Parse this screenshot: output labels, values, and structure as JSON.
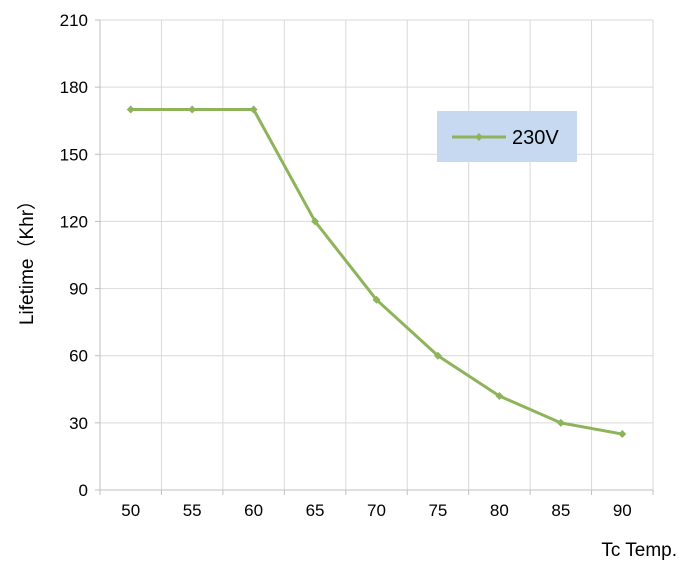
{
  "chart_data": {
    "type": "line",
    "title": "",
    "xlabel": "Tc Temp.",
    "ylabel": "Lifetime（Khr）",
    "categories": [
      "50",
      "55",
      "60",
      "65",
      "70",
      "75",
      "80",
      "85",
      "90"
    ],
    "series": [
      {
        "name": "230V",
        "values": [
          170,
          170,
          170,
          120,
          85,
          60,
          42,
          30,
          25
        ],
        "color": "#8db45a"
      }
    ],
    "ylim": [
      0,
      210
    ],
    "yticks": [
      0,
      30,
      60,
      90,
      120,
      150,
      180,
      210
    ],
    "grid": true,
    "legend_position": "top-right",
    "legend_background": "#c6d9f1"
  }
}
